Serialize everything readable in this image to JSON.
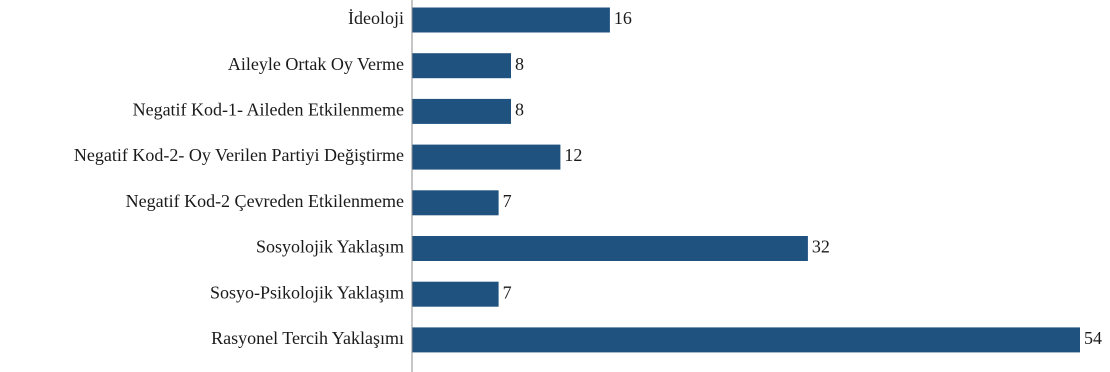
{
  "chart_data": {
    "type": "bar",
    "orientation": "horizontal",
    "categories": [
      "İdeoloji",
      "Aileyle Ortak Oy Verme",
      "Negatif Kod-1- Aileden Etkilenmeme",
      "Negatif Kod-2- Oy Verilen Partiyi Değiştirme",
      "Negatif Kod-2 Çevreden Etkilenmeme",
      "Sosyolojik Yaklaşım",
      "Sosyo-Psikolojik Yaklaşım",
      "Rasyonel Tercih Yaklaşımı"
    ],
    "values": [
      16,
      8,
      8,
      12,
      7,
      32,
      7,
      54
    ],
    "xlim": [
      0,
      54
    ],
    "grid": false,
    "legend": "none",
    "bar_color": "#1f527f"
  }
}
